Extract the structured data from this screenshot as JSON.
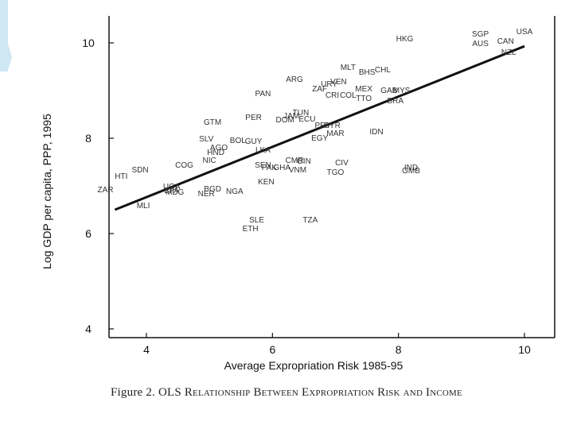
{
  "caption": {
    "figure_label": "Figure 2.",
    "title": "OLS Relationship Between Expropriation Risk and Income"
  },
  "colors": {
    "ink": "#111111",
    "deco": "#cfe6f3"
  },
  "chart_data": {
    "type": "scatter",
    "title": "",
    "xlabel": "Average Expropriation Risk 1985-95",
    "ylabel": "Log GDP per capita, PPP, 1995",
    "xlim": [
      3.3,
      10.3
    ],
    "ylim": [
      3.8,
      10.5
    ],
    "xticks": [
      4,
      6,
      8,
      10
    ],
    "yticks": [
      4,
      6,
      8,
      10
    ],
    "grid": false,
    "fit_line": {
      "x": [
        3.5,
        10.0
      ],
      "y": [
        6.5,
        9.93
      ]
    },
    "points": [
      {
        "label": "USA",
        "x": 10.0,
        "y": 10.25
      },
      {
        "label": "SGP",
        "x": 9.3,
        "y": 10.2
      },
      {
        "label": "CAN",
        "x": 9.7,
        "y": 10.05
      },
      {
        "label": "AUS",
        "x": 9.3,
        "y": 10.0
      },
      {
        "label": "NZL",
        "x": 9.75,
        "y": 9.82
      },
      {
        "label": "HKG",
        "x": 8.1,
        "y": 10.1
      },
      {
        "label": "MLT",
        "x": 7.2,
        "y": 9.5
      },
      {
        "label": "CHL",
        "x": 7.75,
        "y": 9.45
      },
      {
        "label": "BHS",
        "x": 7.5,
        "y": 9.4
      },
      {
        "label": "ARG",
        "x": 6.35,
        "y": 9.25
      },
      {
        "label": "VEN",
        "x": 7.05,
        "y": 9.2
      },
      {
        "label": "URY",
        "x": 6.9,
        "y": 9.15
      },
      {
        "label": "MEX",
        "x": 7.45,
        "y": 9.05
      },
      {
        "label": "GAB",
        "x": 7.85,
        "y": 9.02
      },
      {
        "label": "MYS",
        "x": 8.05,
        "y": 9.02
      },
      {
        "label": "ZAF",
        "x": 6.75,
        "y": 9.05
      },
      {
        "label": "CRI",
        "x": 6.95,
        "y": 8.92
      },
      {
        "label": "COL",
        "x": 7.2,
        "y": 8.92
      },
      {
        "label": "TTO",
        "x": 7.45,
        "y": 8.85
      },
      {
        "label": "BRA",
        "x": 7.95,
        "y": 8.8
      },
      {
        "label": "PAN",
        "x": 5.85,
        "y": 8.95
      },
      {
        "label": "TUN",
        "x": 6.45,
        "y": 8.55
      },
      {
        "label": "JAM",
        "x": 6.3,
        "y": 8.48
      },
      {
        "label": "PER",
        "x": 5.7,
        "y": 8.45
      },
      {
        "label": "DOM",
        "x": 6.2,
        "y": 8.4
      },
      {
        "label": "ECU",
        "x": 6.55,
        "y": 8.42
      },
      {
        "label": "GTM",
        "x": 5.05,
        "y": 8.35
      },
      {
        "label": "PRY",
        "x": 6.8,
        "y": 8.28
      },
      {
        "label": "SYR",
        "x": 6.95,
        "y": 8.28
      },
      {
        "label": "MAR",
        "x": 7.0,
        "y": 8.12
      },
      {
        "label": "EGY",
        "x": 6.75,
        "y": 8.02
      },
      {
        "label": "IDN",
        "x": 7.65,
        "y": 8.15
      },
      {
        "label": "SLV",
        "x": 4.95,
        "y": 8.0
      },
      {
        "label": "BOL",
        "x": 5.45,
        "y": 7.97
      },
      {
        "label": "GUY",
        "x": 5.7,
        "y": 7.95
      },
      {
        "label": "LKA",
        "x": 5.85,
        "y": 7.77
      },
      {
        "label": "AGO",
        "x": 5.15,
        "y": 7.82
      },
      {
        "label": "HND",
        "x": 5.1,
        "y": 7.72
      },
      {
        "label": "NIC",
        "x": 5.0,
        "y": 7.55
      },
      {
        "label": "COG",
        "x": 4.6,
        "y": 7.45
      },
      {
        "label": "SDN",
        "x": 3.9,
        "y": 7.35
      },
      {
        "label": "HTI",
        "x": 3.6,
        "y": 7.22
      },
      {
        "label": "SEN",
        "x": 5.85,
        "y": 7.45
      },
      {
        "label": "PAK",
        "x": 5.95,
        "y": 7.4
      },
      {
        "label": "GHA",
        "x": 6.15,
        "y": 7.4
      },
      {
        "label": "CMR",
        "x": 6.35,
        "y": 7.55
      },
      {
        "label": "GIN",
        "x": 6.5,
        "y": 7.53
      },
      {
        "label": "VNM",
        "x": 6.4,
        "y": 7.35
      },
      {
        "label": "CIV",
        "x": 7.1,
        "y": 7.5
      },
      {
        "label": "TGO",
        "x": 7.0,
        "y": 7.3
      },
      {
        "label": "IND",
        "x": 8.2,
        "y": 7.4
      },
      {
        "label": "GMB",
        "x": 8.2,
        "y": 7.33
      },
      {
        "label": "KEN",
        "x": 5.9,
        "y": 7.1
      },
      {
        "label": "UGA",
        "x": 4.4,
        "y": 7.0
      },
      {
        "label": "BFA",
        "x": 4.4,
        "y": 6.92
      },
      {
        "label": "MDG",
        "x": 4.45,
        "y": 6.88
      },
      {
        "label": "BGD",
        "x": 5.05,
        "y": 6.95
      },
      {
        "label": "NER",
        "x": 4.95,
        "y": 6.85
      },
      {
        "label": "NGA",
        "x": 5.4,
        "y": 6.9
      },
      {
        "label": "ZAR",
        "x": 3.35,
        "y": 6.93
      },
      {
        "label": "MLI",
        "x": 3.95,
        "y": 6.6
      },
      {
        "label": "SLE",
        "x": 5.75,
        "y": 6.3
      },
      {
        "label": "ETH",
        "x": 5.65,
        "y": 6.12
      },
      {
        "label": "TZA",
        "x": 6.6,
        "y": 6.3
      }
    ]
  }
}
